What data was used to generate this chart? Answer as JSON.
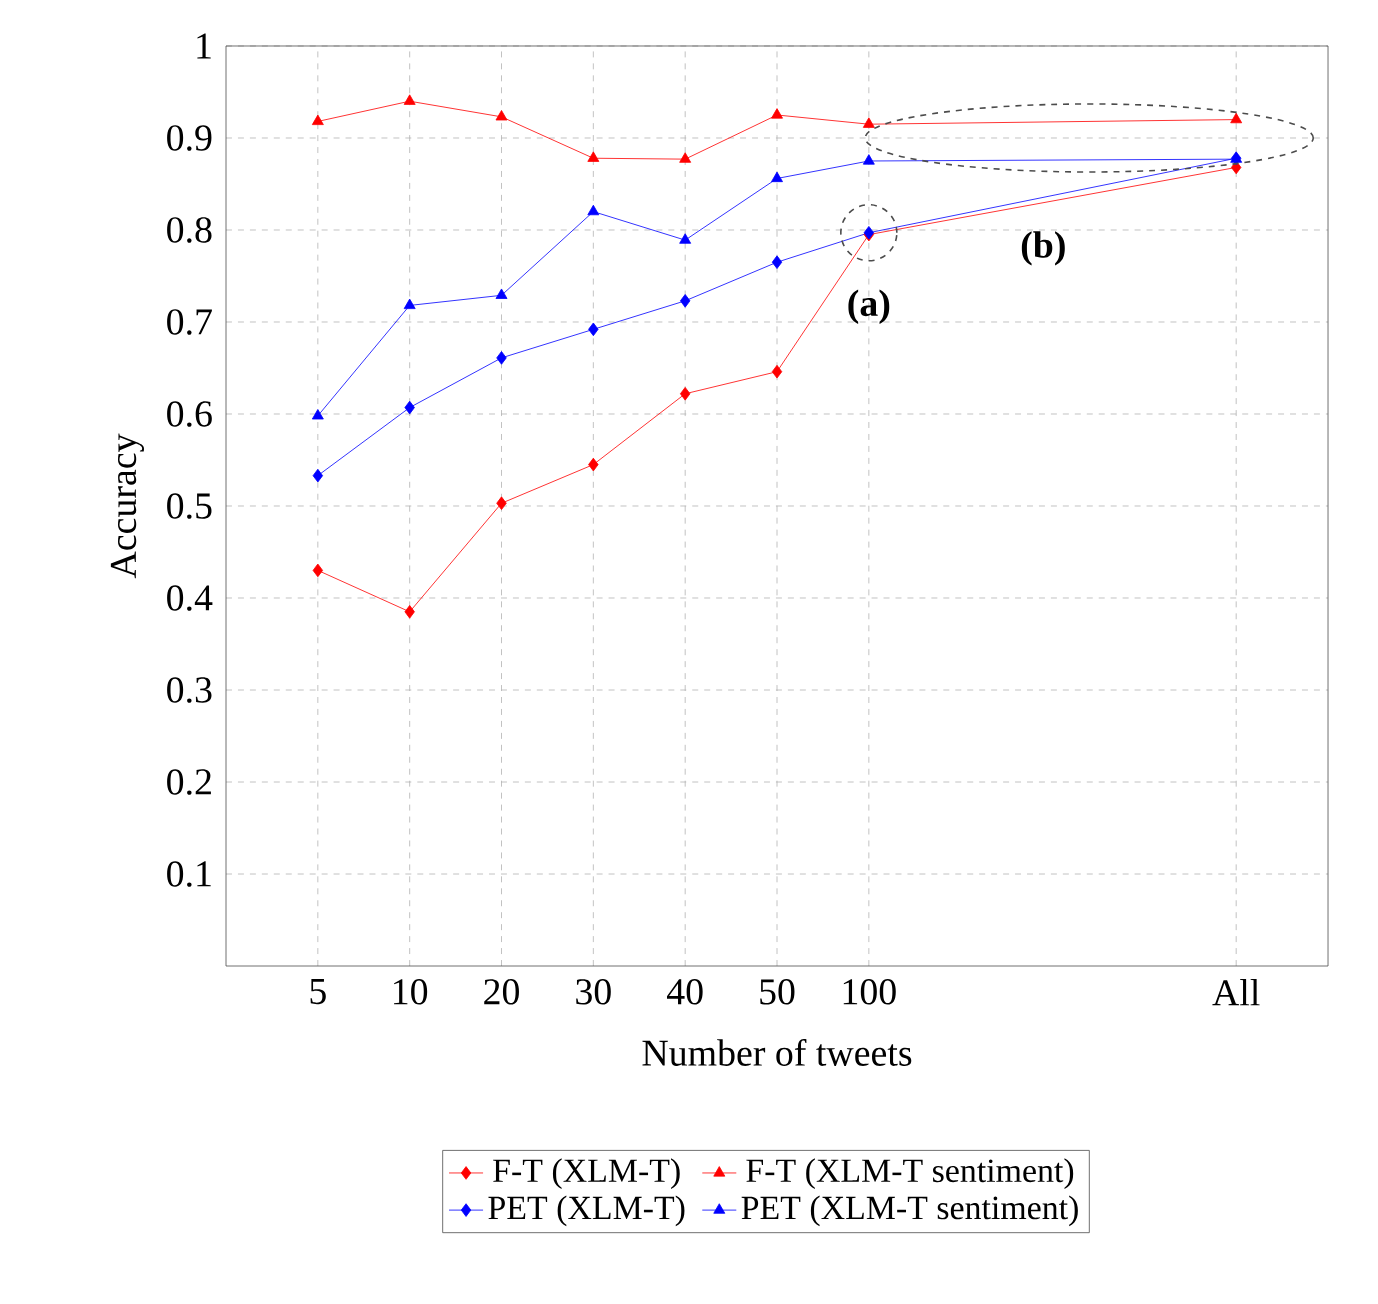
{
  "chart_data": {
    "type": "line",
    "xlabel": "Number of tweets",
    "ylabel": "Accuracy",
    "categories": [
      "5",
      "10",
      "20",
      "30",
      "40",
      "50",
      "100",
      null,
      null,
      null,
      "All"
    ],
    "series": [
      {
        "name": "F-T (XLM-T)",
        "color": "#ff0000",
        "marker": "diamond",
        "values": [
          0.43,
          0.385,
          0.503,
          0.545,
          0.622,
          0.646,
          0.795,
          null,
          null,
          null,
          0.868
        ]
      },
      {
        "name": "F-T (XLM-T sentiment)",
        "color": "#ff0000",
        "marker": "triangle",
        "values": [
          0.918,
          0.94,
          0.923,
          0.878,
          0.877,
          0.925,
          0.915,
          null,
          null,
          null,
          0.92
        ]
      },
      {
        "name": "PET (XLM-T)",
        "color": "#0000ff",
        "marker": "diamond",
        "values": [
          0.533,
          0.607,
          0.661,
          0.692,
          0.723,
          0.765,
          0.797,
          null,
          null,
          null,
          0.878
        ]
      },
      {
        "name": "PET (XLM-T sentiment)",
        "color": "#0000ff",
        "marker": "triangle",
        "values": [
          0.598,
          0.718,
          0.729,
          0.82,
          0.789,
          0.856,
          0.875,
          null,
          null,
          null,
          0.877
        ]
      }
    ],
    "ylim": [
      0,
      1
    ],
    "yticks": [
      0.1,
      0.2,
      0.3,
      0.4,
      0.5,
      0.6,
      0.7,
      0.8,
      0.9,
      1
    ],
    "grid": true,
    "legend": "bottom",
    "line_style": "solid",
    "annotations": [
      {
        "text": "(a)",
        "x": "100",
        "y": 0.797
      },
      "(b)"
    ]
  }
}
